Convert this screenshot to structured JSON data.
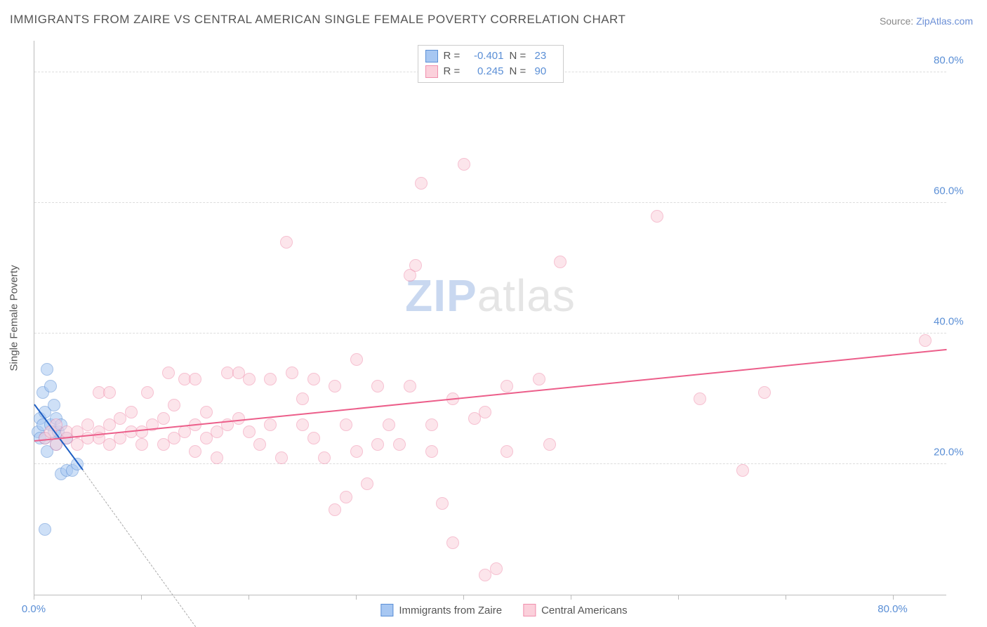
{
  "title": "IMMIGRANTS FROM ZAIRE VS CENTRAL AMERICAN SINGLE FEMALE POVERTY CORRELATION CHART",
  "source_label": "Source: ",
  "source_name": "ZipAtlas.com",
  "watermark_bold": "ZIP",
  "watermark_rest": "atlas",
  "y_axis_title": "Single Female Poverty",
  "chart": {
    "type": "scatter",
    "xlim": [
      0,
      85
    ],
    "ylim": [
      0,
      85
    ],
    "y_ticks": [
      20,
      40,
      60,
      80
    ],
    "y_tick_labels": [
      "20.0%",
      "40.0%",
      "60.0%",
      "80.0%"
    ],
    "x_ticks": [
      0,
      10,
      20,
      30,
      40,
      50,
      60,
      70,
      80
    ],
    "x_tick_labels": {
      "0": "0.0%",
      "80": "80.0%"
    },
    "background_color": "#ffffff",
    "grid_color": "#dddddd",
    "axis_color": "#bbbbbb",
    "tick_label_color": "#5b8fd6",
    "marker_radius": 9,
    "marker_opacity": 0.55,
    "series": [
      {
        "name": "Immigrants from Zaire",
        "label": "Immigrants from Zaire",
        "color_fill": "#a7c7f2",
        "color_stroke": "#5b8fd6",
        "R": "-0.401",
        "N": "23",
        "trend": {
          "x1": 0,
          "y1": 29,
          "x2": 4.5,
          "y2": 19,
          "color": "#1f5fc4",
          "width": 2,
          "dash_extend_x": 15,
          "dash_extend_y": -5
        },
        "points": [
          [
            0.3,
            25
          ],
          [
            0.5,
            27
          ],
          [
            0.5,
            24
          ],
          [
            0.8,
            26
          ],
          [
            0.8,
            31
          ],
          [
            1.0,
            24
          ],
          [
            1.0,
            28
          ],
          [
            1.2,
            22
          ],
          [
            1.2,
            34.5
          ],
          [
            1.5,
            26
          ],
          [
            1.5,
            32
          ],
          [
            1.8,
            25
          ],
          [
            1.8,
            29
          ],
          [
            2.0,
            27
          ],
          [
            2.0,
            23
          ],
          [
            2.2,
            25
          ],
          [
            2.5,
            18.5
          ],
          [
            2.5,
            26
          ],
          [
            3.0,
            19
          ],
          [
            3.0,
            24
          ],
          [
            3.5,
            19
          ],
          [
            4.0,
            20
          ],
          [
            1.0,
            10
          ]
        ]
      },
      {
        "name": "Central Americans",
        "label": "Central Americans",
        "color_fill": "#fbd0db",
        "color_stroke": "#f08fad",
        "R": "0.245",
        "N": "90",
        "trend": {
          "x1": 0,
          "y1": 23.5,
          "x2": 85,
          "y2": 37.5,
          "color": "#ec5e8a",
          "width": 2
        },
        "points": [
          [
            1,
            24
          ],
          [
            1.5,
            25
          ],
          [
            2,
            23
          ],
          [
            2,
            26
          ],
          [
            3,
            24
          ],
          [
            3,
            25
          ],
          [
            4,
            25
          ],
          [
            4,
            23
          ],
          [
            5,
            24
          ],
          [
            5,
            26
          ],
          [
            6,
            25
          ],
          [
            6,
            31
          ],
          [
            6,
            24
          ],
          [
            7,
            23
          ],
          [
            7,
            26
          ],
          [
            7,
            31
          ],
          [
            8,
            27
          ],
          [
            8,
            24
          ],
          [
            9,
            25
          ],
          [
            9,
            28
          ],
          [
            10,
            25
          ],
          [
            10,
            23
          ],
          [
            10.5,
            31
          ],
          [
            11,
            26
          ],
          [
            12,
            27
          ],
          [
            12,
            23
          ],
          [
            12.5,
            34
          ],
          [
            13,
            29
          ],
          [
            13,
            24
          ],
          [
            14,
            33
          ],
          [
            14,
            25
          ],
          [
            15,
            26
          ],
          [
            15,
            33
          ],
          [
            15,
            22
          ],
          [
            16,
            24
          ],
          [
            16,
            28
          ],
          [
            17,
            25
          ],
          [
            17,
            21
          ],
          [
            18,
            34
          ],
          [
            18,
            26
          ],
          [
            19,
            27
          ],
          [
            19,
            34
          ],
          [
            20,
            25
          ],
          [
            20,
            33
          ],
          [
            21,
            23
          ],
          [
            22,
            33
          ],
          [
            22,
            26
          ],
          [
            23,
            21
          ],
          [
            23.5,
            54
          ],
          [
            24,
            34
          ],
          [
            25,
            26
          ],
          [
            25,
            30
          ],
          [
            26,
            24
          ],
          [
            26,
            33
          ],
          [
            27,
            21
          ],
          [
            28,
            32
          ],
          [
            28,
            13
          ],
          [
            29,
            15
          ],
          [
            29,
            26
          ],
          [
            30,
            36
          ],
          [
            30,
            22
          ],
          [
            31,
            17
          ],
          [
            32,
            32
          ],
          [
            32,
            23
          ],
          [
            33,
            26
          ],
          [
            34,
            23
          ],
          [
            35,
            32
          ],
          [
            35,
            49
          ],
          [
            35.5,
            50.5
          ],
          [
            36,
            63
          ],
          [
            37,
            26
          ],
          [
            37,
            22
          ],
          [
            38,
            14
          ],
          [
            39,
            8
          ],
          [
            39,
            30
          ],
          [
            40,
            66
          ],
          [
            41,
            27
          ],
          [
            42,
            28
          ],
          [
            42,
            3
          ],
          [
            43,
            4
          ],
          [
            44,
            32
          ],
          [
            44,
            22
          ],
          [
            47,
            33
          ],
          [
            48,
            23
          ],
          [
            49,
            51
          ],
          [
            58,
            58
          ],
          [
            62,
            30
          ],
          [
            66,
            19
          ],
          [
            68,
            31
          ],
          [
            83,
            39
          ]
        ]
      }
    ]
  },
  "legend_top": {
    "R_label": "R =",
    "N_label": "N ="
  }
}
